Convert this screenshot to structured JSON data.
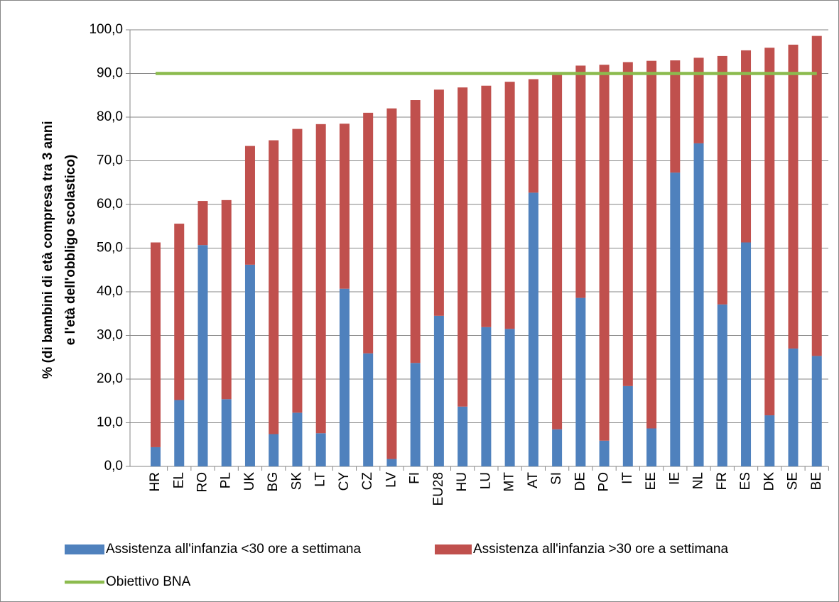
{
  "chart_data": {
    "type": "bar",
    "stacked": true,
    "y_label": [
      "% (di bambini di età compresa tra 3 anni",
      "e l'età dell'obbligo scolastico)"
    ],
    "categories": [
      "HR",
      "EL",
      "RO",
      "PL",
      "UK",
      "BG",
      "SK",
      "LT",
      "CY",
      "CZ",
      "LV",
      "FI",
      "EU28",
      "HU",
      "LU",
      "MT",
      "AT",
      "SI",
      "DE",
      "PO",
      "IT",
      "EE",
      "IE",
      "NL",
      "FR",
      "ES",
      "DK",
      "SE",
      "BE"
    ],
    "series": [
      {
        "name": "Assistenza all'infanzia <30 ore a settimana",
        "color": "#4f81bd",
        "type": "bar",
        "values": [
          4.4,
          15.2,
          50.7,
          15.4,
          46.2,
          7.4,
          12.3,
          7.6,
          40.7,
          25.9,
          1.7,
          23.7,
          34.5,
          13.7,
          31.9,
          31.5,
          62.7,
          8.5,
          38.6,
          5.9,
          18.4,
          8.7,
          67.3,
          74.0,
          37.1,
          51.3,
          11.7,
          27.0,
          25.3
        ]
      },
      {
        "name": "Assistenza all'infanzia >30 ore a settimana",
        "color": "#c0504d",
        "type": "bar",
        "values": [
          46.9,
          40.4,
          10.1,
          45.6,
          27.2,
          67.3,
          65.0,
          70.8,
          37.8,
          55.1,
          80.3,
          60.2,
          51.8,
          73.1,
          55.3,
          56.6,
          26.0,
          81.3,
          53.2,
          86.1,
          74.2,
          84.2,
          25.7,
          19.6,
          56.9,
          44.0,
          84.2,
          69.6,
          73.3
        ]
      },
      {
        "name": "Obiettivo BNA",
        "color": "#8cbb4e",
        "type": "line",
        "values": [
          90,
          90,
          90,
          90,
          90,
          90,
          90,
          90,
          90,
          90,
          90,
          90,
          90,
          90,
          90,
          90,
          90,
          90,
          90,
          90,
          90,
          90,
          90,
          90,
          90,
          90,
          90,
          90,
          90
        ]
      }
    ],
    "ylim": [
      0,
      100
    ],
    "yticks": [
      {
        "value": 0,
        "label": "0,0"
      },
      {
        "value": 10,
        "label": "10,0"
      },
      {
        "value": 20,
        "label": "20,0"
      },
      {
        "value": 30,
        "label": "30,0"
      },
      {
        "value": 40,
        "label": "40,0"
      },
      {
        "value": 50,
        "label": "50,0"
      },
      {
        "value": 60,
        "label": "60,0"
      },
      {
        "value": 70,
        "label": "70,0"
      },
      {
        "value": 80,
        "label": "80,0"
      },
      {
        "value": 90,
        "label": "90,0"
      },
      {
        "value": 100,
        "label": "100,0"
      }
    ],
    "grid": true,
    "legend": "bottom"
  }
}
